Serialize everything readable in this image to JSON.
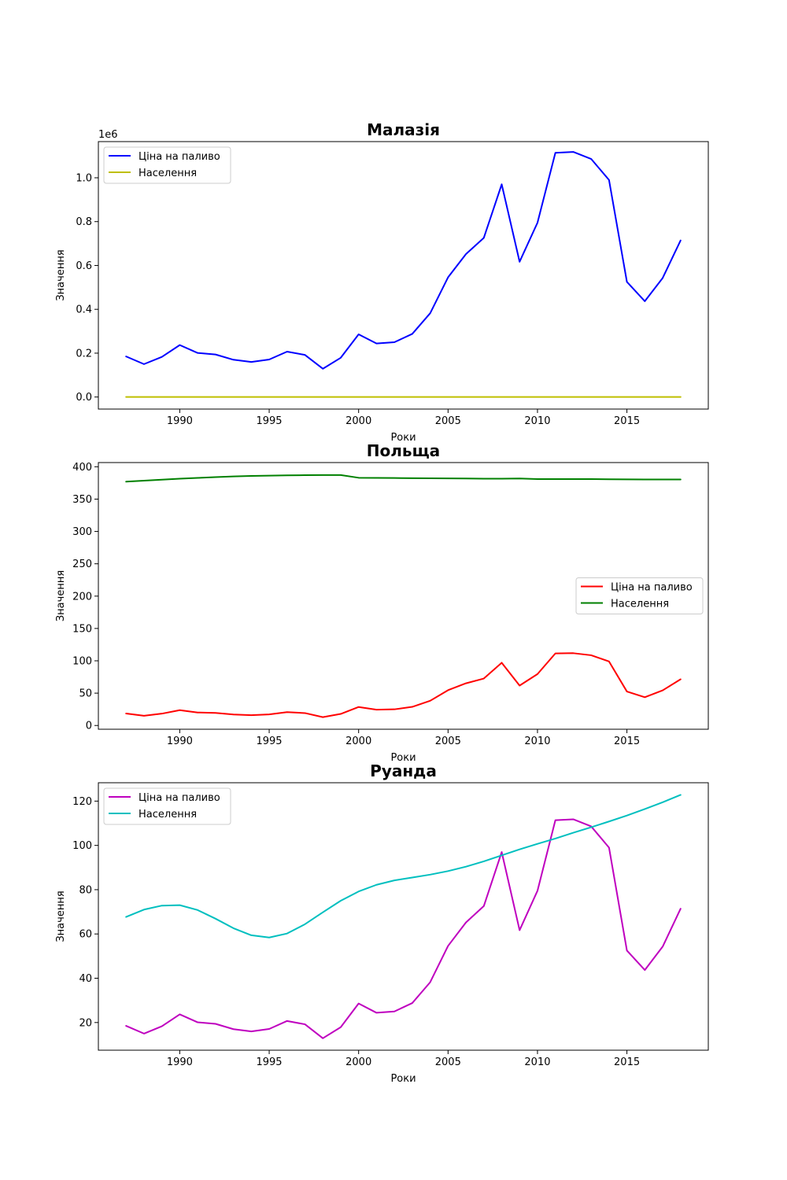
{
  "chart_data": [
    {
      "type": "line",
      "title": "Малазія",
      "xlabel": "Роки",
      "ylabel": "Значення",
      "offset_label": "1e6",
      "legend_position": "upper-left",
      "grid": false,
      "xlim": [
        1985.45,
        2019.55
      ],
      "ylim": [
        -0.055,
        1.165
      ],
      "xticks": [
        1990,
        1995,
        2000,
        2005,
        2010,
        2015
      ],
      "yticks": [
        0.0,
        0.2,
        0.4,
        0.6,
        0.8,
        1.0
      ],
      "ytick_labels": [
        "0.0",
        "0.2",
        "0.4",
        "0.6",
        "0.8",
        "1.0"
      ],
      "x": [
        1987,
        1988,
        1989,
        1990,
        1991,
        1992,
        1993,
        1994,
        1995,
        1996,
        1997,
        1998,
        1999,
        2000,
        2001,
        2002,
        2003,
        2004,
        2005,
        2006,
        2007,
        2008,
        2009,
        2010,
        2011,
        2012,
        2013,
        2014,
        2015,
        2016,
        2017,
        2018
      ],
      "series": [
        {
          "name": "Ціна на паливо",
          "color": "#0000ff",
          "values": [
            0.185,
            0.15,
            0.183,
            0.237,
            0.201,
            0.194,
            0.17,
            0.16,
            0.171,
            0.207,
            0.192,
            0.129,
            0.179,
            0.286,
            0.244,
            0.25,
            0.288,
            0.382,
            0.546,
            0.652,
            0.726,
            0.97,
            0.617,
            0.795,
            1.114,
            1.118,
            1.086,
            0.99,
            0.525,
            0.437,
            0.543,
            0.714
          ]
        },
        {
          "name": "Населення",
          "color": "#bfbf00",
          "values": [
            0.0003,
            0.0003,
            0.0003,
            0.0003,
            0.0003,
            0.0003,
            0.0003,
            0.0003,
            0.0003,
            0.0003,
            0.0003,
            0.0003,
            0.0003,
            0.0003,
            0.0003,
            0.0003,
            0.0003,
            0.0003,
            0.0003,
            0.0003,
            0.0003,
            0.0003,
            0.0003,
            0.0003,
            0.0003,
            0.0003,
            0.0003,
            0.0003,
            0.0003,
            0.0003,
            0.0003,
            0.0003
          ]
        }
      ]
    },
    {
      "type": "line",
      "title": "Польща",
      "xlabel": "Роки",
      "ylabel": "Значення",
      "legend_position": "center-right",
      "grid": false,
      "xlim": [
        1985.45,
        2019.55
      ],
      "ylim": [
        -5.8,
        406.5
      ],
      "xticks": [
        1990,
        1995,
        2000,
        2005,
        2010,
        2015
      ],
      "yticks": [
        0,
        50,
        100,
        150,
        200,
        250,
        300,
        350,
        400
      ],
      "ytick_labels": [
        "0",
        "50",
        "100",
        "150",
        "200",
        "250",
        "300",
        "350",
        "400"
      ],
      "x": [
        1987,
        1988,
        1989,
        1990,
        1991,
        1992,
        1993,
        1994,
        1995,
        1996,
        1997,
        1998,
        1999,
        2000,
        2001,
        2002,
        2003,
        2004,
        2005,
        2006,
        2007,
        2008,
        2009,
        2010,
        2011,
        2012,
        2013,
        2014,
        2015,
        2016,
        2017,
        2018
      ],
      "series": [
        {
          "name": "Ціна на паливо",
          "color": "#ff0000",
          "values": [
            18.5,
            15.0,
            18.3,
            23.7,
            20.1,
            19.4,
            17.0,
            16.0,
            17.1,
            20.7,
            19.2,
            12.9,
            17.9,
            28.6,
            24.4,
            25.0,
            28.8,
            38.2,
            54.6,
            65.2,
            72.6,
            97.0,
            61.7,
            79.5,
            111.4,
            111.8,
            108.6,
            99.0,
            52.5,
            43.7,
            54.3,
            71.4
          ]
        },
        {
          "name": "Населення",
          "color": "#008000",
          "values": [
            377.0,
            378.5,
            380.0,
            381.5,
            382.8,
            384.0,
            385.0,
            385.8,
            386.3,
            386.7,
            387.0,
            387.2,
            387.2,
            383.0,
            382.8,
            382.6,
            382.4,
            382.2,
            382.0,
            381.8,
            381.6,
            381.6,
            381.8,
            381.0,
            381.0,
            381.0,
            380.9,
            380.7,
            380.5,
            380.3,
            380.3,
            380.3
          ]
        }
      ]
    },
    {
      "type": "line",
      "title": "Руанда",
      "xlabel": "Роки",
      "ylabel": "Значення",
      "legend_position": "upper-left",
      "grid": false,
      "xlim": [
        1985.45,
        2019.55
      ],
      "ylim": [
        7.5,
        128.3
      ],
      "xticks": [
        1990,
        1995,
        2000,
        2005,
        2010,
        2015
      ],
      "yticks": [
        20,
        40,
        60,
        80,
        100,
        120
      ],
      "ytick_labels": [
        "20",
        "40",
        "60",
        "80",
        "100",
        "120"
      ],
      "x": [
        1987,
        1988,
        1989,
        1990,
        1991,
        1992,
        1993,
        1994,
        1995,
        1996,
        1997,
        1998,
        1999,
        2000,
        2001,
        2002,
        2003,
        2004,
        2005,
        2006,
        2007,
        2008,
        2009,
        2010,
        2011,
        2012,
        2013,
        2014,
        2015,
        2016,
        2017,
        2018
      ],
      "series": [
        {
          "name": "Ціна на паливо",
          "color": "#bf00bf",
          "values": [
            18.5,
            15.0,
            18.3,
            23.7,
            20.1,
            19.4,
            17.0,
            16.0,
            17.1,
            20.7,
            19.2,
            12.9,
            17.9,
            28.6,
            24.4,
            25.0,
            28.8,
            38.2,
            54.6,
            65.2,
            72.6,
            97.0,
            61.7,
            79.5,
            111.4,
            111.8,
            108.6,
            99.0,
            52.5,
            43.7,
            54.3,
            71.4
          ]
        },
        {
          "name": "Населення",
          "color": "#00bfbf",
          "values": [
            67.7,
            71.0,
            72.8,
            73.0,
            70.8,
            66.9,
            62.6,
            59.4,
            58.4,
            60.2,
            64.4,
            69.8,
            75.0,
            79.2,
            82.2,
            84.2,
            85.5,
            86.8,
            88.4,
            90.4,
            92.8,
            95.5,
            98.2,
            100.7,
            103.1,
            105.7,
            108.2,
            110.8,
            113.5,
            116.4,
            119.5,
            122.8
          ]
        }
      ]
    }
  ]
}
